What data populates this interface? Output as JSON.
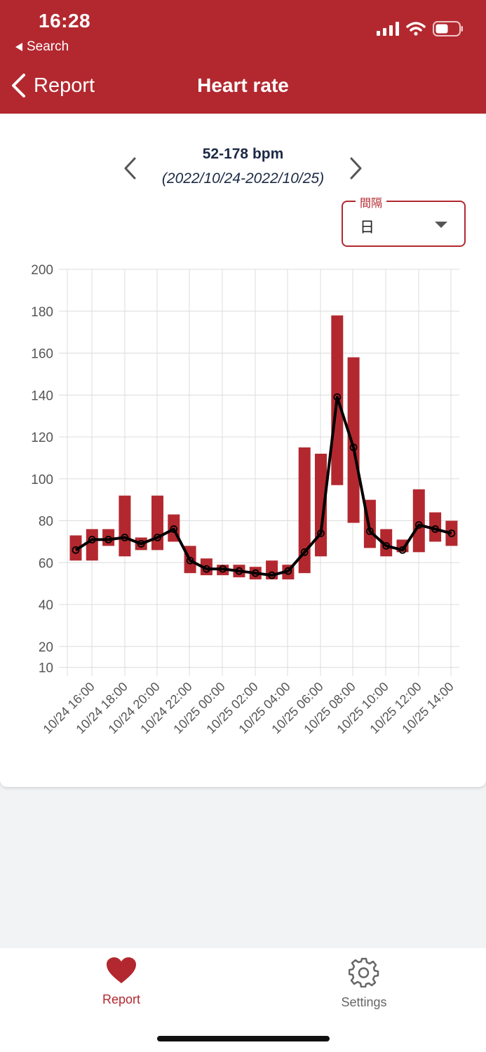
{
  "status": {
    "time": "16:28",
    "back_app": "Search"
  },
  "nav": {
    "back_label": "Report",
    "title": "Heart rate"
  },
  "range": {
    "bpm": "52-178 bpm",
    "dates": "(2022/10/24-2022/10/25)"
  },
  "interval": {
    "label": "間隔",
    "value": "日"
  },
  "tabs": {
    "report": "Report",
    "settings": "Settings"
  },
  "colors": {
    "accent": "#b3282f",
    "line": "#000000"
  },
  "chart_data": {
    "type": "bar",
    "y_ticks": [
      200,
      180,
      160,
      140,
      120,
      100,
      80,
      60,
      40,
      20,
      10
    ],
    "ylim": [
      10,
      200
    ],
    "x_tick_labels": [
      "10/24 16:00",
      "10/24 18:00",
      "10/24 20:00",
      "10/24 22:00",
      "10/25 00:00",
      "10/25 02:00",
      "10/25 04:00",
      "10/25 06:00",
      "10/25 08:00",
      "10/25 10:00",
      "10/25 12:00",
      "10/25 14:00"
    ],
    "series": [
      {
        "name": "",
        "kind": "range-bar",
        "low": [
          61,
          61,
          68,
          63,
          66,
          66,
          70,
          55,
          54,
          54,
          53,
          52,
          52,
          52,
          55,
          63,
          97,
          79,
          67,
          63,
          65,
          65,
          70,
          68
        ],
        "high": [
          73,
          76,
          76,
          92,
          72,
          92,
          83,
          68,
          62,
          59,
          59,
          58,
          61,
          59,
          115,
          112,
          178,
          158,
          90,
          76,
          71,
          95,
          84,
          80
        ]
      },
      {
        "name": "",
        "kind": "line",
        "values": [
          66,
          71,
          71,
          72,
          69,
          72,
          76,
          61,
          57,
          57,
          56,
          55,
          54,
          56,
          65,
          74,
          139,
          115,
          75,
          68,
          66,
          78,
          76,
          74
        ]
      }
    ],
    "grid": true
  }
}
